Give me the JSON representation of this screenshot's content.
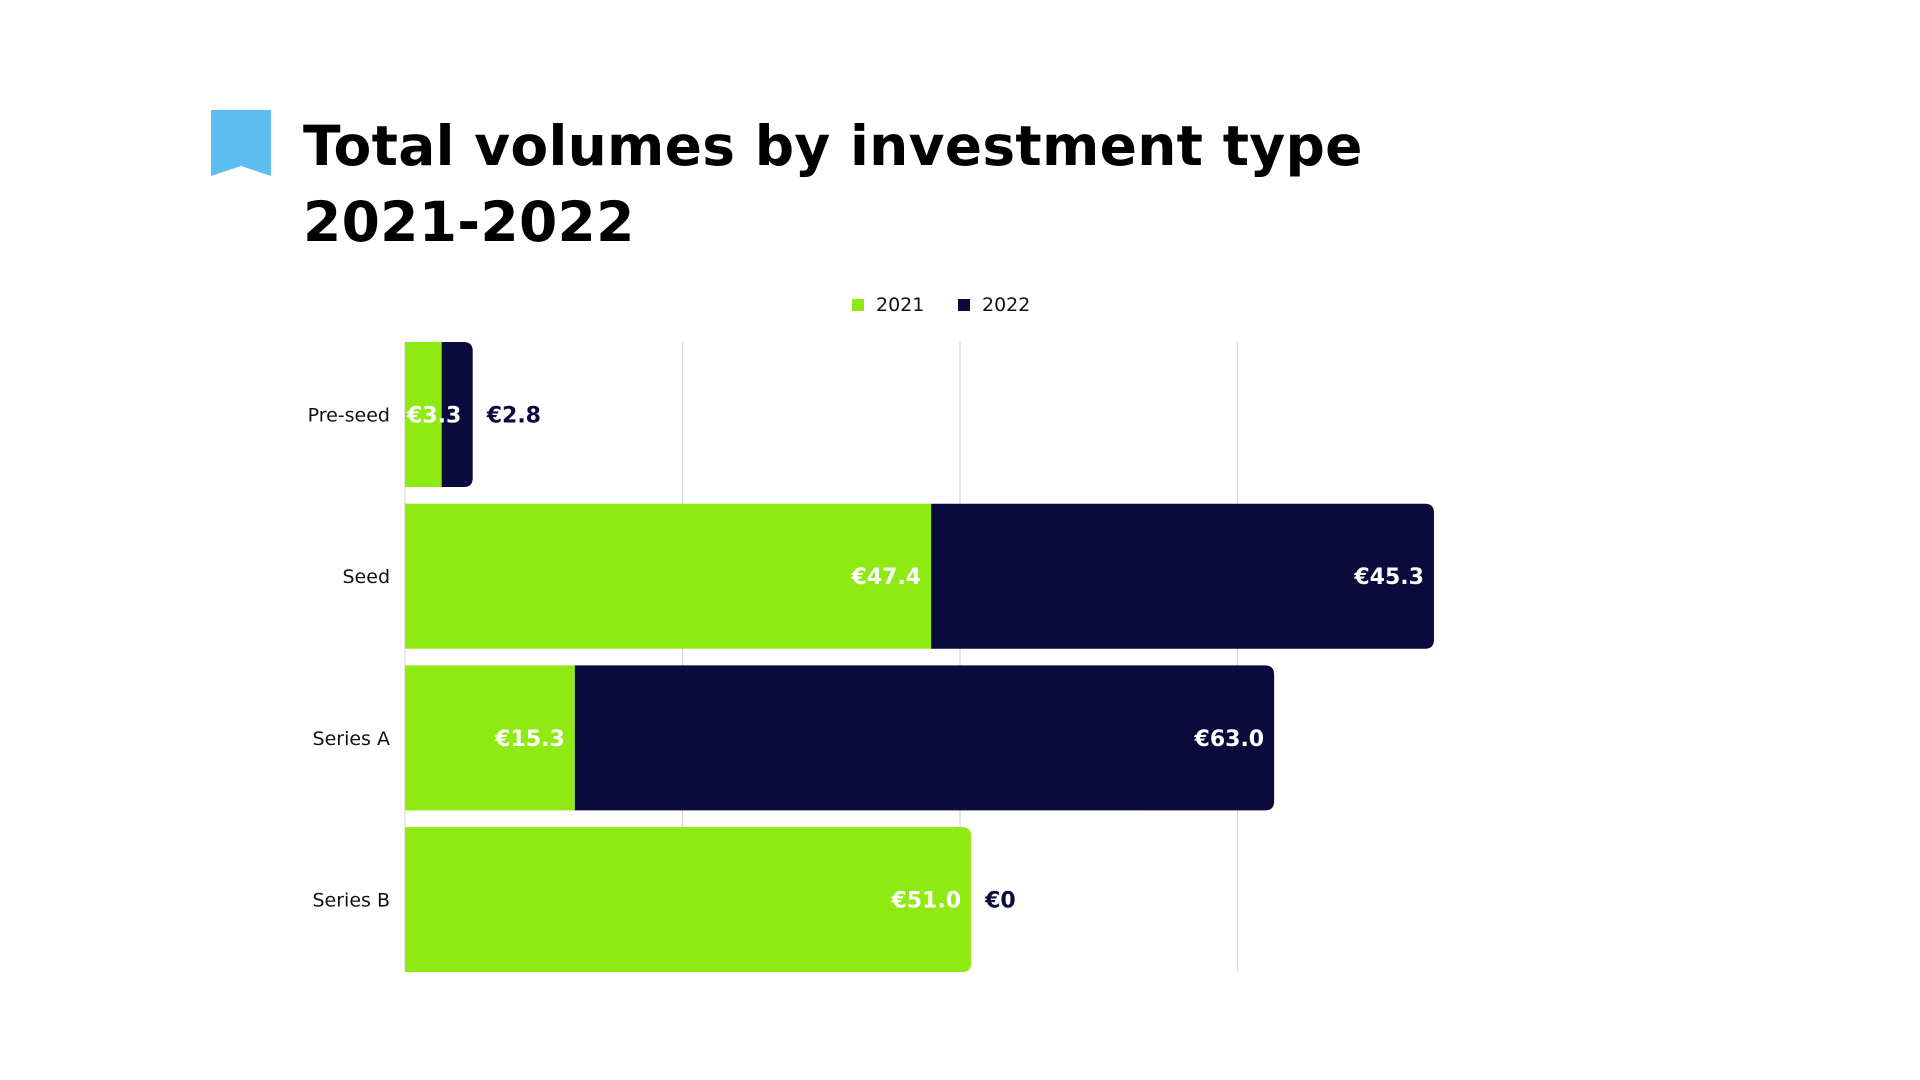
{
  "title": {
    "line1": "Total volumes by investment type",
    "line2": "2021-2022"
  },
  "chart_data": {
    "type": "bar",
    "orientation": "horizontal",
    "stacked": true,
    "categories": [
      "Pre-seed",
      "Seed",
      "Series A",
      "Series B"
    ],
    "series": [
      {
        "name": "2021",
        "color": "#8eea12",
        "label_color": "#ffffff",
        "values": [
          3.3,
          47.4,
          15.3,
          51.0
        ],
        "labels": [
          "€3.3",
          "€47.4",
          "€15.3",
          "€51.0"
        ]
      },
      {
        "name": "2022",
        "color": "#0a0a3d",
        "label_color": "#ffffff",
        "values": [
          2.8,
          45.3,
          63.0,
          0
        ],
        "labels": [
          "€2.8",
          "€45.3",
          "€63.0",
          "€0"
        ]
      }
    ],
    "outside_label_color": "#0a0a3d",
    "xlim": [
      0,
      100
    ],
    "gridlines": [
      25,
      50,
      75
    ],
    "legend_position": "top-center",
    "xlabel": "",
    "ylabel": ""
  },
  "colors": {
    "bookmark": "#5bbdf0",
    "gridline": "#d6d6d6",
    "axis_text": "#111111"
  }
}
